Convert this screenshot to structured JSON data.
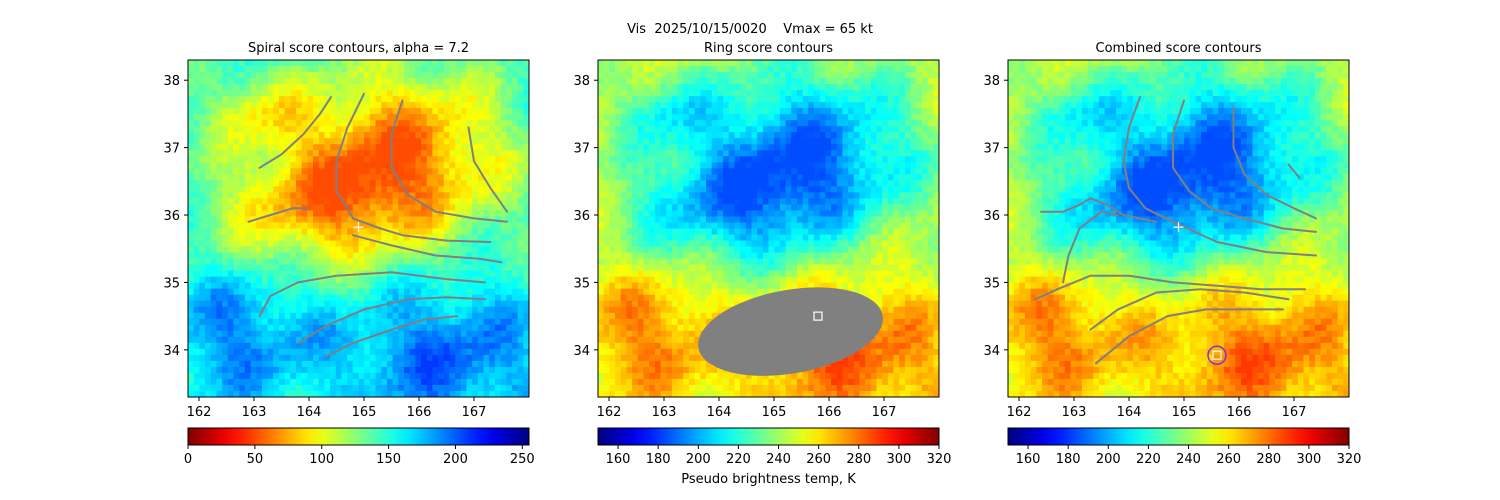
{
  "figure": {
    "suptitle": "Vis  2025/10/15/0020    Vmax = 65 kt"
  },
  "chart_data": [
    {
      "type": "heatmap",
      "title": "Spiral score contours, alpha =  7.2",
      "xlim": [
        161.8,
        168.0
      ],
      "ylim": [
        33.3,
        38.3
      ],
      "xticks": [
        162,
        163,
        164,
        165,
        166,
        167
      ],
      "yticks": [
        34,
        35,
        36,
        37,
        38
      ],
      "colormap": "jet",
      "colorbar": {
        "label": "",
        "ticks": [
          0,
          50,
          100,
          150,
          200,
          250
        ],
        "range": [
          0,
          255
        ],
        "reversed": true
      },
      "center_marker": {
        "x": 164.9,
        "y": 35.82,
        "marker": "plus",
        "color": "#ffffff"
      },
      "contours": [
        [
          [
            163.1,
            36.7
          ],
          [
            163.5,
            36.9
          ],
          [
            163.9,
            37.2
          ],
          [
            164.2,
            37.5
          ],
          [
            164.4,
            37.75
          ]
        ],
        [
          [
            165.0,
            37.8
          ],
          [
            164.7,
            37.3
          ],
          [
            164.5,
            36.8
          ],
          [
            164.5,
            36.35
          ],
          [
            164.7,
            36.1
          ],
          [
            164.8,
            35.95
          ],
          [
            165.3,
            35.8
          ],
          [
            165.7,
            35.7
          ],
          [
            166.5,
            35.62
          ],
          [
            167.3,
            35.6
          ]
        ],
        [
          [
            165.7,
            37.7
          ],
          [
            165.5,
            37.2
          ],
          [
            165.5,
            36.7
          ],
          [
            165.8,
            36.3
          ],
          [
            166.3,
            36.05
          ],
          [
            167.0,
            35.95
          ],
          [
            167.6,
            35.9
          ]
        ],
        [
          [
            166.9,
            37.3
          ],
          [
            167.0,
            36.8
          ],
          [
            167.3,
            36.4
          ],
          [
            167.6,
            36.05
          ]
        ],
        [
          [
            162.9,
            35.9
          ],
          [
            163.3,
            36.0
          ],
          [
            163.7,
            36.1
          ],
          [
            164.0,
            36.1
          ]
        ],
        [
          [
            164.8,
            35.7
          ],
          [
            165.5,
            35.55
          ],
          [
            166.3,
            35.4
          ],
          [
            167.1,
            35.35
          ],
          [
            167.5,
            35.3
          ]
        ],
        [
          [
            163.1,
            34.5
          ],
          [
            163.3,
            34.8
          ],
          [
            163.8,
            35.0
          ],
          [
            164.5,
            35.1
          ],
          [
            165.5,
            35.15
          ],
          [
            166.5,
            35.05
          ],
          [
            167.2,
            35.0
          ]
        ],
        [
          [
            163.8,
            34.1
          ],
          [
            164.3,
            34.35
          ],
          [
            165.0,
            34.6
          ],
          [
            165.8,
            34.75
          ],
          [
            166.5,
            34.78
          ],
          [
            167.2,
            34.75
          ]
        ],
        [
          [
            164.3,
            33.9
          ],
          [
            164.8,
            34.1
          ],
          [
            165.5,
            34.3
          ],
          [
            166.1,
            34.45
          ],
          [
            166.7,
            34.5
          ]
        ]
      ]
    },
    {
      "type": "heatmap",
      "title": "Ring score contours",
      "xlim": [
        161.8,
        168.0
      ],
      "ylim": [
        33.3,
        38.3
      ],
      "xticks": [
        162,
        163,
        164,
        165,
        166,
        167
      ],
      "yticks": [
        34,
        35,
        36,
        37,
        38
      ],
      "colormap": "jet",
      "colorbar": {
        "label": "Pseudo brightness temp, K",
        "ticks": [
          160,
          180,
          200,
          220,
          240,
          260,
          280,
          300,
          320
        ],
        "range": [
          150,
          320
        ],
        "reversed": false
      },
      "masked_region": {
        "center": [
          165.3,
          34.27
        ],
        "radius_x": 1.7,
        "radius_y": 0.62,
        "rotation": -10,
        "color": "#808080"
      },
      "best_point": {
        "x": 165.8,
        "y": 34.5,
        "marker": "square",
        "color": "#ffffff"
      },
      "contours": []
    },
    {
      "type": "heatmap",
      "title": "Combined score contours",
      "xlim": [
        161.8,
        168.0
      ],
      "ylim": [
        33.3,
        38.3
      ],
      "xticks": [
        162,
        163,
        164,
        165,
        166,
        167
      ],
      "yticks": [
        34,
        35,
        36,
        37,
        38
      ],
      "colormap": "jet",
      "colorbar": {
        "label": "",
        "ticks": [
          160,
          180,
          200,
          220,
          240,
          260,
          280,
          300,
          320
        ],
        "range": [
          150,
          320
        ],
        "reversed": false
      },
      "center_marker": {
        "x": 164.9,
        "y": 35.82,
        "marker": "plus",
        "color": "#ffffff"
      },
      "best_point": {
        "x": 165.6,
        "y": 33.92,
        "marker": "square",
        "color": "#ffffff",
        "ring_color": "#8a2be2"
      },
      "contours": [
        [
          [
            164.2,
            37.75
          ],
          [
            164.0,
            37.3
          ],
          [
            163.9,
            36.8
          ],
          [
            164.0,
            36.4
          ],
          [
            164.3,
            36.1
          ],
          [
            164.8,
            35.9
          ],
          [
            165.2,
            35.75
          ],
          [
            165.6,
            35.6
          ],
          [
            166.5,
            35.45
          ],
          [
            167.4,
            35.4
          ]
        ],
        [
          [
            165.0,
            37.7
          ],
          [
            164.8,
            37.2
          ],
          [
            164.8,
            36.7
          ],
          [
            165.1,
            36.35
          ],
          [
            165.5,
            36.1
          ],
          [
            166.1,
            35.95
          ],
          [
            166.8,
            35.8
          ],
          [
            167.4,
            35.75
          ]
        ],
        [
          [
            165.9,
            37.6
          ],
          [
            165.9,
            37.0
          ],
          [
            166.1,
            36.6
          ],
          [
            166.5,
            36.3
          ],
          [
            167.0,
            36.1
          ],
          [
            167.4,
            35.95
          ]
        ],
        [
          [
            166.9,
            36.75
          ],
          [
            167.1,
            36.55
          ]
        ],
        [
          [
            162.4,
            36.05
          ],
          [
            162.8,
            36.05
          ],
          [
            163.1,
            36.15
          ],
          [
            163.3,
            36.25
          ],
          [
            163.6,
            36.15
          ],
          [
            163.9,
            36.0
          ],
          [
            164.5,
            35.9
          ]
        ],
        [
          [
            162.8,
            35.0
          ],
          [
            162.9,
            35.4
          ],
          [
            163.1,
            35.8
          ],
          [
            163.5,
            36.05
          ],
          [
            163.8,
            36.0
          ]
        ],
        [
          [
            162.3,
            34.75
          ],
          [
            162.7,
            34.9
          ],
          [
            163.3,
            35.1
          ],
          [
            164.0,
            35.1
          ],
          [
            164.8,
            35.0
          ],
          [
            165.6,
            34.95
          ],
          [
            166.4,
            34.9
          ],
          [
            167.2,
            34.9
          ]
        ],
        [
          [
            163.3,
            34.3
          ],
          [
            163.8,
            34.6
          ],
          [
            164.5,
            34.85
          ],
          [
            165.3,
            34.9
          ],
          [
            166.1,
            34.85
          ],
          [
            166.9,
            34.75
          ]
        ],
        [
          [
            163.4,
            33.8
          ],
          [
            164.0,
            34.2
          ],
          [
            164.7,
            34.5
          ],
          [
            165.4,
            34.6
          ],
          [
            166.2,
            34.6
          ],
          [
            166.8,
            34.6
          ]
        ]
      ]
    }
  ]
}
